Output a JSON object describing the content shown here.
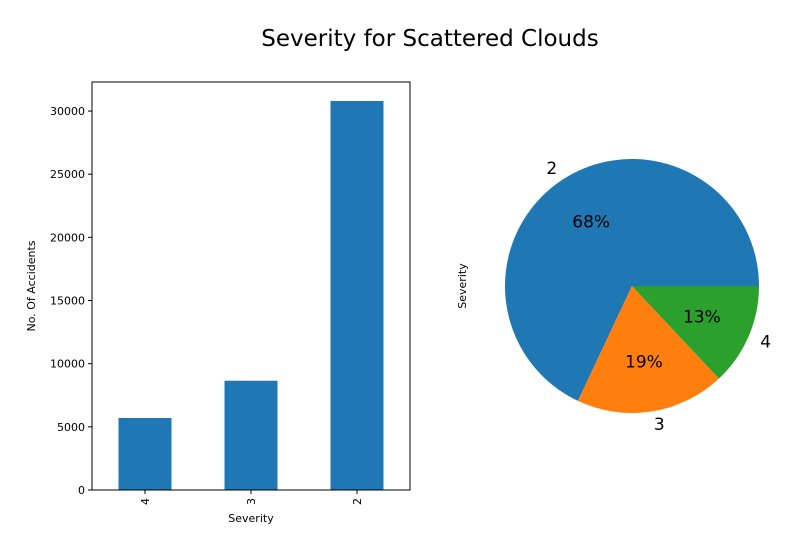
{
  "title": "Severity for Scattered Clouds",
  "chart_data": [
    {
      "type": "bar",
      "title": "",
      "xlabel": "Severity",
      "ylabel": "No. Of Accidents",
      "categories": [
        "4",
        "3",
        "2"
      ],
      "values": [
        5700,
        8650,
        30800
      ],
      "ylim": [
        0,
        32300
      ],
      "yticks": [
        0,
        5000,
        10000,
        15000,
        20000,
        25000,
        30000
      ],
      "ytick_labels": [
        "0",
        "5000",
        "10000",
        "15000",
        "20000",
        "25000",
        "30000"
      ],
      "grid": false,
      "colors": [
        "#1f77b4"
      ]
    },
    {
      "type": "pie",
      "ylabel": "Severity",
      "labels": [
        "2",
        "3",
        "4"
      ],
      "values": [
        68,
        19,
        13
      ],
      "pct_labels": [
        "68%",
        "19%",
        "13%"
      ],
      "colors": [
        "#1f77b4",
        "#ff7f0e",
        "#2ca02c"
      ]
    }
  ]
}
